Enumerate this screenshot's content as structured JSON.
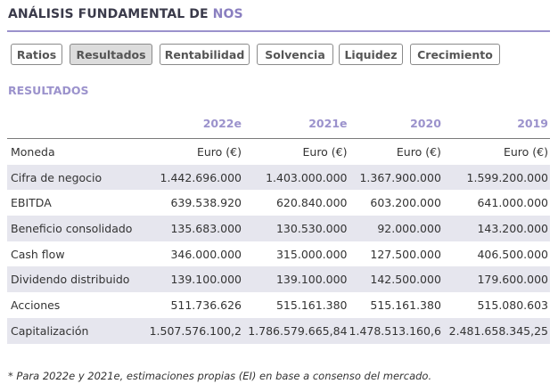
{
  "header": {
    "title_prefix": "ANÁLISIS FUNDAMENTAL DE",
    "company": "NOS"
  },
  "tabs": [
    {
      "label": "Ratios",
      "active": false
    },
    {
      "label": "Resultados",
      "active": true
    },
    {
      "label": "Rentabilidad",
      "active": false
    },
    {
      "label": "Solvencia",
      "active": false
    },
    {
      "label": "Liquidez",
      "active": false
    },
    {
      "label": "Crecimiento",
      "active": false
    }
  ],
  "section": {
    "title": "RESULTADOS"
  },
  "table": {
    "columns": [
      "",
      "2022e",
      "2021e",
      "2020",
      "2019"
    ],
    "rows": [
      {
        "label": "Moneda",
        "values": [
          "Euro (€)",
          "Euro (€)",
          "Euro (€)",
          "Euro (€)"
        ]
      },
      {
        "label": "Cifra de negocio",
        "values": [
          "1.442.696.000",
          "1.403.000.000",
          "1.367.900.000",
          "1.599.200.000"
        ]
      },
      {
        "label": "EBITDA",
        "values": [
          "639.538.920",
          "620.840.000",
          "603.200.000",
          "641.000.000"
        ]
      },
      {
        "label": "Beneficio consolidado",
        "values": [
          "135.683.000",
          "130.530.000",
          "92.000.000",
          "143.200.000"
        ]
      },
      {
        "label": "Cash flow",
        "values": [
          "346.000.000",
          "315.000.000",
          "127.500.000",
          "406.500.000"
        ]
      },
      {
        "label": "Dividendo distribuido",
        "values": [
          "139.100.000",
          "139.100.000",
          "142.500.000",
          "179.600.000"
        ]
      },
      {
        "label": "Acciones",
        "values": [
          "511.736.626",
          "515.161.380",
          "515.161.380",
          "515.080.603"
        ]
      },
      {
        "label": "Capitalización",
        "values": [
          "1.507.576.100,2",
          "1.786.579.665,84",
          "1.478.513.160,6",
          "2.481.658.345,25"
        ]
      }
    ]
  },
  "footnote": "* Para 2022e y 2021e, estimaciones propias (EI) en base a consenso del mercado."
}
